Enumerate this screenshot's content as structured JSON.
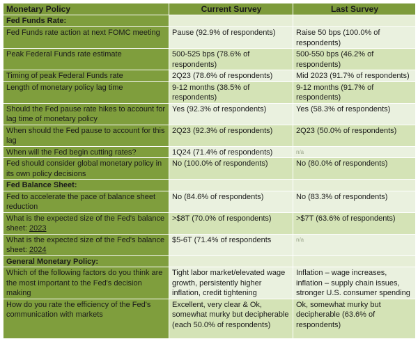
{
  "headers": [
    "Monetary Policy",
    "Current Survey",
    "Last Survey"
  ],
  "rows": [
    {
      "type": "section",
      "q": "Fed Funds Rate:"
    },
    {
      "q": "Fed Funds rate action at next FOMC meeting",
      "cur": "Pause (92.9% of respondents)",
      "last": "Raise 50 bps (100.0% of respondents)"
    },
    {
      "q": "Peak Federal Funds rate estimate",
      "cur": "500-525 bps (78.6% of respondents)",
      "last": "500-550 bps (46.2% of respondents)"
    },
    {
      "q": "Timing of peak Federal Funds rate",
      "cur": "2Q23 (78.6% of respondents)",
      "last": "Mid 2023 (91.7% of respondents)"
    },
    {
      "q": "Length of monetary policy lag time",
      "cur": "9-12 months (38.5% of respondents)",
      "last": "9-12 months (91.7% of respondents)"
    },
    {
      "q": "Should the Fed pause rate hikes to account for lag time of monetary policy",
      "cur": "Yes (92.3% of respondents)",
      "last": "Yes (58.3% of respondents)"
    },
    {
      "q": "When should the Fed pause to account for this lag",
      "cur": "2Q23 (92.3% of respondents)",
      "last": "2Q23 (50.0% of respondents)"
    },
    {
      "q": "When will the Fed begin cutting rates?",
      "cur": "1Q24 (71.4% of respondents)",
      "last": "n/a"
    },
    {
      "q": "Fed should consider global monetary policy in its own policy decisions",
      "cur": "No (100.0% of respondents)",
      "last": "No (80.0% of respondents)"
    },
    {
      "type": "section",
      "q": "Fed Balance Sheet:"
    },
    {
      "q": "Fed to accelerate the pace of balance sheet reduction",
      "cur": "No (84.6% of respondents)",
      "last": "No (83.3% of respondents)"
    },
    {
      "q": "What is the expected size of the Fed's balance sheet: ",
      "q_year": "2023",
      "cur": ">$8T (70.0% of respondents)",
      "last": ">$7T (63.6% of respondents)"
    },
    {
      "q": "What is the expected size of the Fed's balance sheet: ",
      "q_year": "2024",
      "cur": "$5-6T (71.4% of respondents",
      "last": "n/a"
    },
    {
      "type": "section",
      "q": "General Monetary Policy:"
    },
    {
      "q": "Which of the following factors do you think are the most important to the Fed's decision making",
      "cur": "Tight labor market/elevated wage growth, persistently higher inflation, credit tightening",
      "last": "Inflation – wage increases, inflation – supply chain issues, stronger U.S. consumer spending"
    },
    {
      "q": "How do you rate the efficiency of the Fed's communication with markets",
      "cur": "Excellent, very clear & Ok, somewhat murky but decipherable (each 50.0% of respondents)",
      "last": "Ok, somewhat murky but decipherable (63.6% of respondents)"
    }
  ]
}
